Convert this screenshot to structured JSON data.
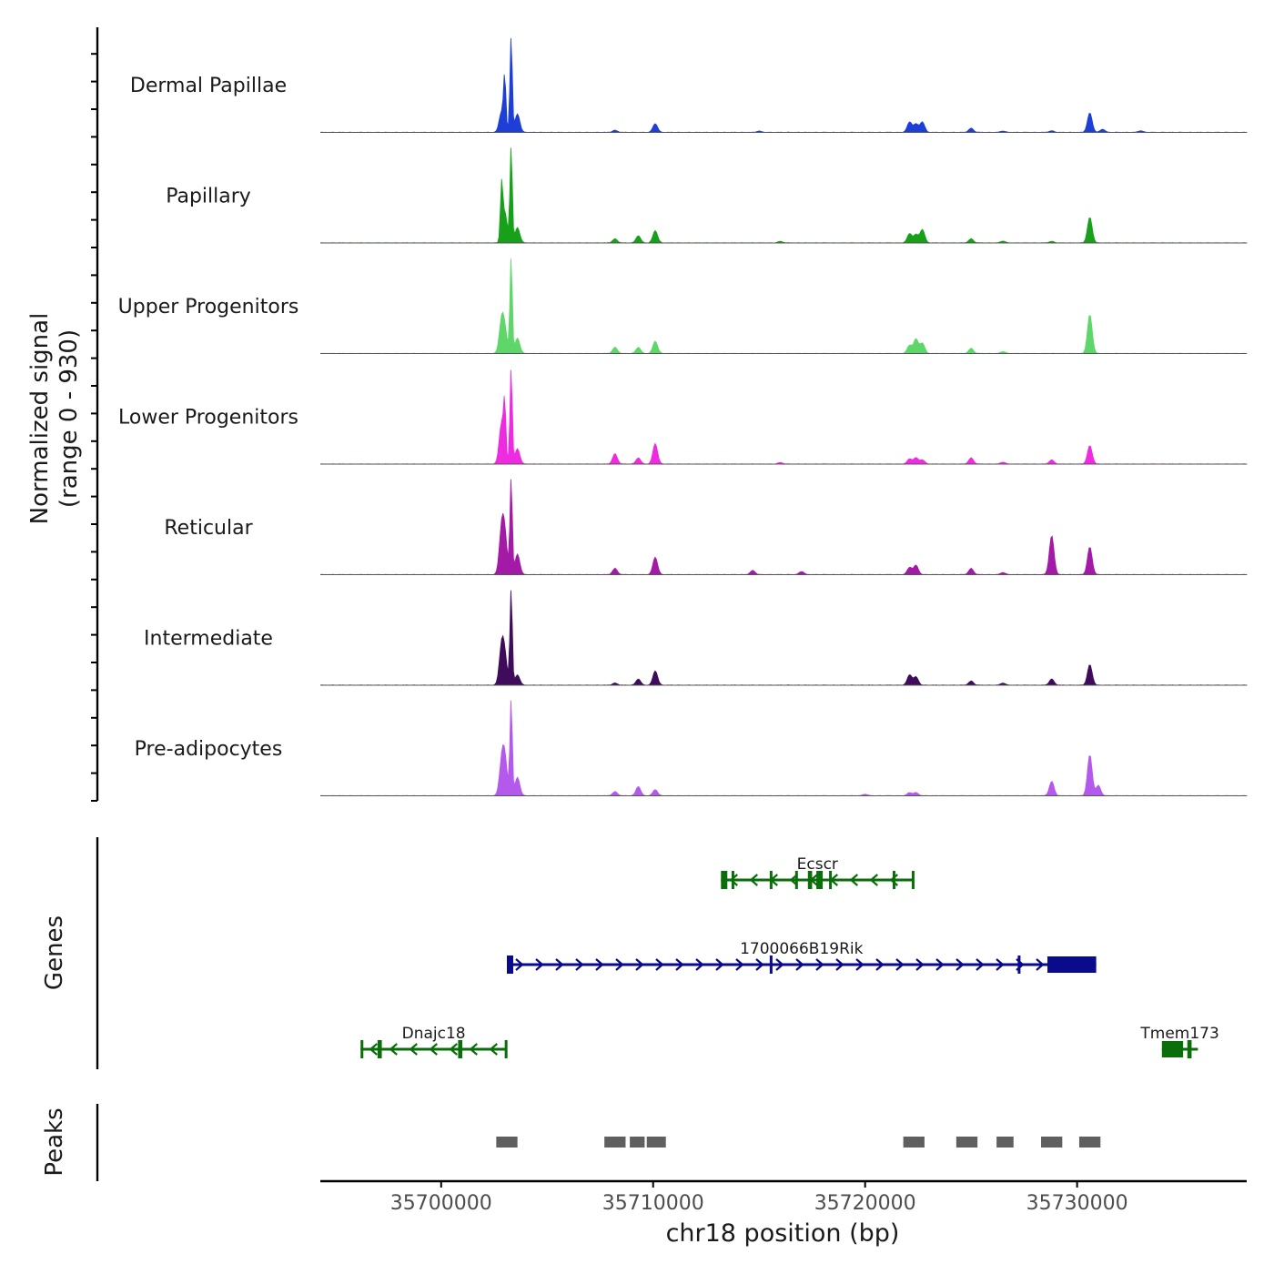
{
  "chart_data": {
    "type": "area",
    "title": "",
    "ylabel": "Normalized signal",
    "ylabel_range": "(range 0 - 930)",
    "ylim": [
      0,
      930
    ],
    "xlabel": "chr18 position (bp)",
    "xlim": [
      35694300,
      35738000
    ],
    "x_ticks": [
      35700000,
      35710000,
      35720000,
      35730000
    ],
    "x_tick_labels": [
      "35700000",
      "35710000",
      "35720000",
      "35730000"
    ],
    "series": [
      {
        "name": "Dermal Papillae",
        "color": "#1d3fd6",
        "peaks": [
          [
            35702850,
            200
          ],
          [
            35703000,
            500
          ],
          [
            35703300,
            930
          ],
          [
            35703600,
            180
          ],
          [
            35708200,
            20
          ],
          [
            35710100,
            85
          ],
          [
            35715000,
            12
          ],
          [
            35722100,
            100
          ],
          [
            35722400,
            80
          ],
          [
            35722700,
            100
          ],
          [
            35725000,
            40
          ],
          [
            35726500,
            12
          ],
          [
            35728800,
            15
          ],
          [
            35730600,
            190
          ],
          [
            35731200,
            30
          ],
          [
            35733000,
            15
          ]
        ]
      },
      {
        "name": "Papillary",
        "color": "#19a01a",
        "peaks": [
          [
            35702850,
            500
          ],
          [
            35703000,
            300
          ],
          [
            35703300,
            930
          ],
          [
            35703600,
            150
          ],
          [
            35708200,
            40
          ],
          [
            35709300,
            70
          ],
          [
            35710100,
            120
          ],
          [
            35716000,
            15
          ],
          [
            35722100,
            90
          ],
          [
            35722400,
            80
          ],
          [
            35722700,
            130
          ],
          [
            35725000,
            40
          ],
          [
            35726500,
            18
          ],
          [
            35728800,
            15
          ],
          [
            35730600,
            250
          ]
        ]
      },
      {
        "name": "Upper Progenitors",
        "color": "#5ed66a",
        "peaks": [
          [
            35702850,
            300
          ],
          [
            35703000,
            200
          ],
          [
            35703300,
            930
          ],
          [
            35703600,
            150
          ],
          [
            35708200,
            60
          ],
          [
            35709300,
            60
          ],
          [
            35710100,
            120
          ],
          [
            35722100,
            80
          ],
          [
            35722400,
            140
          ],
          [
            35722700,
            100
          ],
          [
            35725000,
            50
          ],
          [
            35726500,
            18
          ],
          [
            35730600,
            380
          ]
        ]
      },
      {
        "name": "Lower Progenitors",
        "color": "#ee2be0",
        "peaks": [
          [
            35702850,
            400
          ],
          [
            35703000,
            500
          ],
          [
            35703300,
            930
          ],
          [
            35703600,
            150
          ],
          [
            35708200,
            100
          ],
          [
            35709300,
            60
          ],
          [
            35710100,
            200
          ],
          [
            35716000,
            15
          ],
          [
            35722100,
            50
          ],
          [
            35722400,
            60
          ],
          [
            35722700,
            40
          ],
          [
            35725000,
            60
          ],
          [
            35726500,
            18
          ],
          [
            35728800,
            40
          ],
          [
            35730600,
            180
          ]
        ]
      },
      {
        "name": "Reticular",
        "color": "#a31aa6",
        "peaks": [
          [
            35702850,
            400
          ],
          [
            35703000,
            350
          ],
          [
            35703300,
            930
          ],
          [
            35703600,
            200
          ],
          [
            35708200,
            60
          ],
          [
            35710100,
            170
          ],
          [
            35714700,
            40
          ],
          [
            35717000,
            30
          ],
          [
            35722100,
            70
          ],
          [
            35722400,
            90
          ],
          [
            35725000,
            60
          ],
          [
            35726500,
            20
          ],
          [
            35728800,
            380
          ],
          [
            35730600,
            270
          ]
        ]
      },
      {
        "name": "Intermediate",
        "color": "#3e0c5a",
        "peaks": [
          [
            35702850,
            350
          ],
          [
            35703000,
            250
          ],
          [
            35703300,
            930
          ],
          [
            35703600,
            100
          ],
          [
            35708200,
            20
          ],
          [
            35709300,
            60
          ],
          [
            35710100,
            140
          ],
          [
            35722100,
            100
          ],
          [
            35722400,
            80
          ],
          [
            35725000,
            40
          ],
          [
            35726500,
            20
          ],
          [
            35728800,
            60
          ],
          [
            35730600,
            200
          ]
        ]
      },
      {
        "name": "Pre-adipocytes",
        "color": "#b359ec",
        "peaks": [
          [
            35702850,
            280
          ],
          [
            35703000,
            350
          ],
          [
            35703300,
            930
          ],
          [
            35703600,
            180
          ],
          [
            35708200,
            40
          ],
          [
            35709300,
            90
          ],
          [
            35710100,
            60
          ],
          [
            35720000,
            15
          ],
          [
            35722100,
            30
          ],
          [
            35722400,
            30
          ],
          [
            35728800,
            140
          ],
          [
            35730600,
            400
          ],
          [
            35731000,
            100
          ]
        ]
      }
    ],
    "genes": [
      {
        "name": "Ecscr",
        "strand": "-",
        "color": "#0a6e0a",
        "start": 35713200,
        "end": 35722300,
        "exons": [
          [
            35713200,
            35713500
          ],
          [
            35713700,
            35713800
          ],
          [
            35715500,
            35715600
          ],
          [
            35716700,
            35716800
          ],
          [
            35717300,
            35717500
          ],
          [
            35717700,
            35718000
          ],
          [
            35718300,
            35718350
          ],
          [
            35721300,
            35721400
          ],
          [
            35722200,
            35722300
          ]
        ]
      },
      {
        "name": "1700066B19Rik",
        "strand": "+",
        "color": "#0a0a8c",
        "start": 35703100,
        "end": 35730900,
        "exons": [
          [
            35703100,
            35703400
          ],
          [
            35715500,
            35715600
          ],
          [
            35727200,
            35727300
          ],
          [
            35728600,
            35730900
          ]
        ]
      },
      {
        "name": "Dnajc18",
        "strand": "-",
        "color": "#0a6e0a",
        "start": 35696200,
        "end": 35703100,
        "exons": [
          [
            35696200,
            35696300
          ],
          [
            35697000,
            35697200
          ],
          [
            35700800,
            35701000
          ],
          [
            35703000,
            35703100
          ]
        ]
      },
      {
        "name": "Tmem173",
        "strand": "-",
        "color": "#0a6e0a",
        "start": 35734000,
        "end": 35735700,
        "exons": [
          [
            35734000,
            35735000
          ],
          [
            35735200,
            35735400
          ]
        ]
      }
    ],
    "peaks_track": [
      [
        35702600,
        35703600
      ],
      [
        35707700,
        35708700
      ],
      [
        35708900,
        35709600
      ],
      [
        35709700,
        35710600
      ],
      [
        35721800,
        35722800
      ],
      [
        35724300,
        35725300
      ],
      [
        35726200,
        35727000
      ],
      [
        35728300,
        35729300
      ],
      [
        35730100,
        35731100
      ]
    ],
    "genes_label": "Genes",
    "peaks_label": "Peaks"
  }
}
